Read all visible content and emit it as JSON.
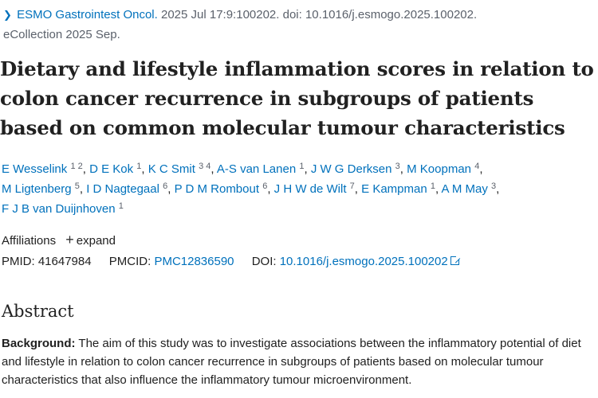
{
  "citation": {
    "journal": "ESMO Gastrointest Oncol.",
    "details": "2025 Jul 17:9:100202. doi: 10.1016/j.esmogo.2025.100202.",
    "ecollection": "eCollection 2025 Sep."
  },
  "title": "Dietary and lifestyle inflammation scores in relation to colon cancer recurrence in subgroups of patients based on common molecular tumour characteristics",
  "authors": [
    {
      "name": "E Wesselink",
      "sup": "1 2"
    },
    {
      "name": "D E Kok",
      "sup": "1"
    },
    {
      "name": "K C Smit",
      "sup": "3 4"
    },
    {
      "name": "A-S van Lanen",
      "sup": "1"
    },
    {
      "name": "J W G Derksen",
      "sup": "3"
    },
    {
      "name": "M Koopman",
      "sup": "4"
    },
    {
      "name": "M Ligtenberg",
      "sup": "5"
    },
    {
      "name": "I D Nagtegaal",
      "sup": "6"
    },
    {
      "name": "P D M Rombout",
      "sup": "6"
    },
    {
      "name": "J H W de Wilt",
      "sup": "7"
    },
    {
      "name": "E Kampman",
      "sup": "1"
    },
    {
      "name": "A M May",
      "sup": "3"
    },
    {
      "name": "F J B van Duijnhoven",
      "sup": "1"
    }
  ],
  "affiliations": {
    "label": "Affiliations",
    "expand": "expand"
  },
  "identifiers": {
    "pmid_label": "PMID:",
    "pmid": "41647984",
    "pmcid_label": "PMCID:",
    "pmcid": "PMC12836590",
    "doi_label": "DOI:",
    "doi": "10.1016/j.esmogo.2025.100202"
  },
  "abstract": {
    "heading": "Abstract",
    "background_label": "Background:",
    "background_text": "The aim of this study was to investigate associations between the inflammatory potential of diet and lifestyle in relation to colon cancer recurrence in subgroups of patients based on molecular tumour characteristics that also influence the inflammatory tumour microenvironment."
  },
  "colors": {
    "link": "#0071bc",
    "text": "#212121",
    "muted": "#5b616b"
  },
  "icons": {
    "chevron": "chevron-right-icon",
    "plus": "plus-icon",
    "external": "external-link-icon"
  }
}
